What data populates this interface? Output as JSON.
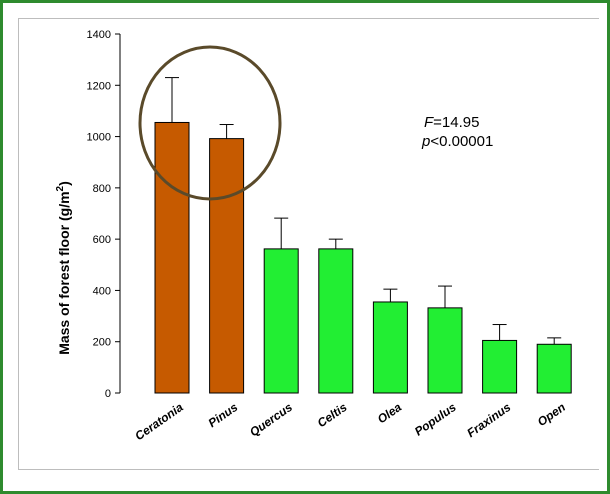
{
  "chart_data": {
    "type": "bar",
    "categories": [
      "Ceratonia",
      "Pinus",
      "Quercus",
      "Celtis",
      "Olea",
      "Populus",
      "Fraxinus",
      "Open"
    ],
    "values": [
      1055,
      992,
      562,
      562,
      355,
      332,
      205,
      190
    ],
    "errors": [
      175,
      55,
      120,
      38,
      50,
      85,
      62,
      25
    ],
    "bar_colors": [
      "#c65a00",
      "#c65a00",
      "#22ee33",
      "#22ee33",
      "#22ee33",
      "#22ee33",
      "#22ee33",
      "#22ee33"
    ],
    "highlight_circle_color": "#5a4a2a",
    "title": "",
    "xlabel": "",
    "ylabel_prefix": "Mass of forest floor (g/m",
    "ylabel_sup": "2",
    "ylabel_suffix": ")",
    "ylim": [
      0,
      1400
    ],
    "yticks": [
      0,
      200,
      400,
      600,
      800,
      1000,
      1200,
      1400
    ],
    "grid": false,
    "annotation": {
      "f_label": "F",
      "f_value": "=14.95",
      "p_label": "p",
      "p_value": "<0.00001"
    }
  }
}
